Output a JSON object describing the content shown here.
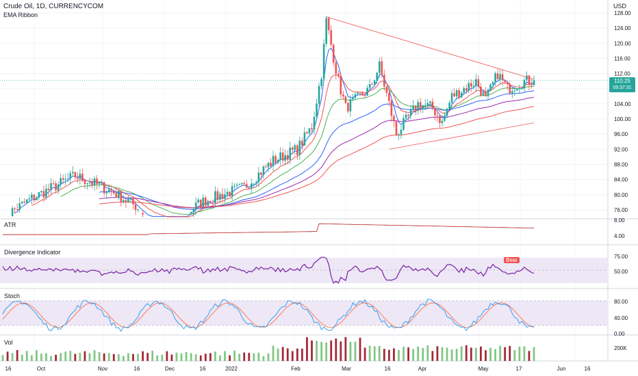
{
  "header": {
    "symbol_line": "Crude Oil, 1D, CURRENCYCOM",
    "indicator": "EMA Ribbon"
  },
  "price_axis": {
    "currency": "USD",
    "ticks": [
      "128.00",
      "124.00",
      "120.00",
      "116.00",
      "112.00",
      "108.00",
      "104.00",
      "100.00",
      "96.00",
      "92.00",
      "88.00",
      "84.00",
      "80.00",
      "76.00"
    ]
  },
  "last_price": {
    "value": "110.25",
    "countdown": "09:37:31"
  },
  "panes": {
    "atr": {
      "label": "ATR",
      "ticks": [
        "8.00",
        "4.00"
      ]
    },
    "divergence": {
      "label": "Divergence Indicator",
      "ticks": [
        "75.00",
        "50.00"
      ],
      "badge": "Bear"
    },
    "stoch": {
      "label": "Stoch",
      "ticks": [
        "80.00",
        "40.00",
        "0.00"
      ]
    },
    "vol": {
      "label": "Vol",
      "ticks": [
        "200K"
      ]
    }
  },
  "time_axis": [
    "16",
    "Oct",
    "Nov",
    "16",
    "Dec",
    "16",
    "2022",
    "Feb",
    "Mar",
    "16",
    "Apr",
    "May",
    "17",
    "Jun",
    "16"
  ],
  "colors": {
    "up": "#26a69a",
    "down": "#ef5350",
    "ema_fast": "#2962ff",
    "ema2": "#ef5350",
    "ema3": "#4caf50",
    "ema4": "#2962ff",
    "ema5": "#9c27b0",
    "ema6": "#ef5350",
    "rsi": "#7b1fa2",
    "stoch_k": "#2196f3",
    "stoch_d": "#ff7043"
  },
  "chart_data": {
    "type": "line",
    "title": "Crude Oil, 1D, CURRENCYCOM",
    "ylabel": "USD",
    "ylim": [
      74,
      130
    ],
    "x": [
      "Oct",
      "Nov",
      "Dec",
      "2022",
      "Feb",
      "Mar",
      "Apr",
      "May",
      "17"
    ],
    "series": [
      {
        "name": "EMA Ribbon",
        "values": [
          78,
          84,
          79,
          76,
          90,
          110,
          101,
          104,
          110.25
        ]
      }
    ],
    "last_value": 110.25,
    "grid": true
  }
}
